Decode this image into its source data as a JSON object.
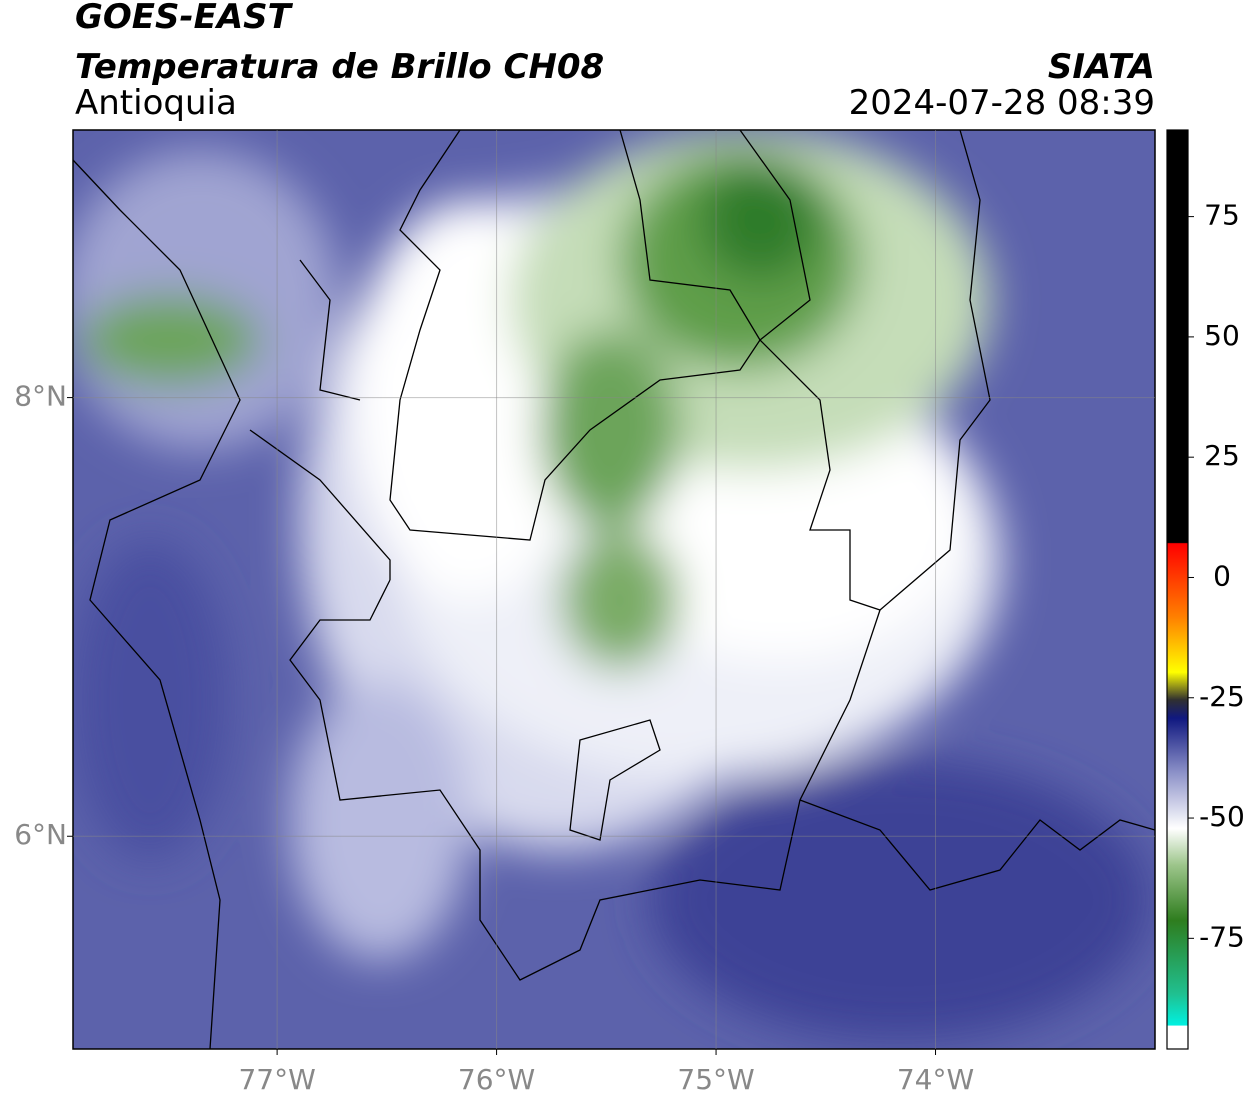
{
  "header": {
    "title": "GOES-EAST",
    "subtitle": "Temperatura de Brillo CH08",
    "region": "Antioquia",
    "source": "SIATA",
    "datetime": "2024-07-28 08:39"
  },
  "map": {
    "xlim": [
      -77.93,
      -73.0
    ],
    "ylim": [
      5.03,
      9.22
    ],
    "xticks": [
      {
        "value": -77,
        "label": "77°W"
      },
      {
        "value": -76,
        "label": "76°W"
      },
      {
        "value": -75,
        "label": "75°W"
      },
      {
        "value": -74,
        "label": "74°W"
      }
    ],
    "yticks": [
      {
        "value": 6,
        "label": "6°N"
      },
      {
        "value": 8,
        "label": "8°N"
      }
    ],
    "grid": true
  },
  "colorbar": {
    "ylim": [
      -98,
      93
    ],
    "yticks": [
      -75,
      -50,
      -25,
      0,
      25,
      50,
      75
    ]
  }
}
